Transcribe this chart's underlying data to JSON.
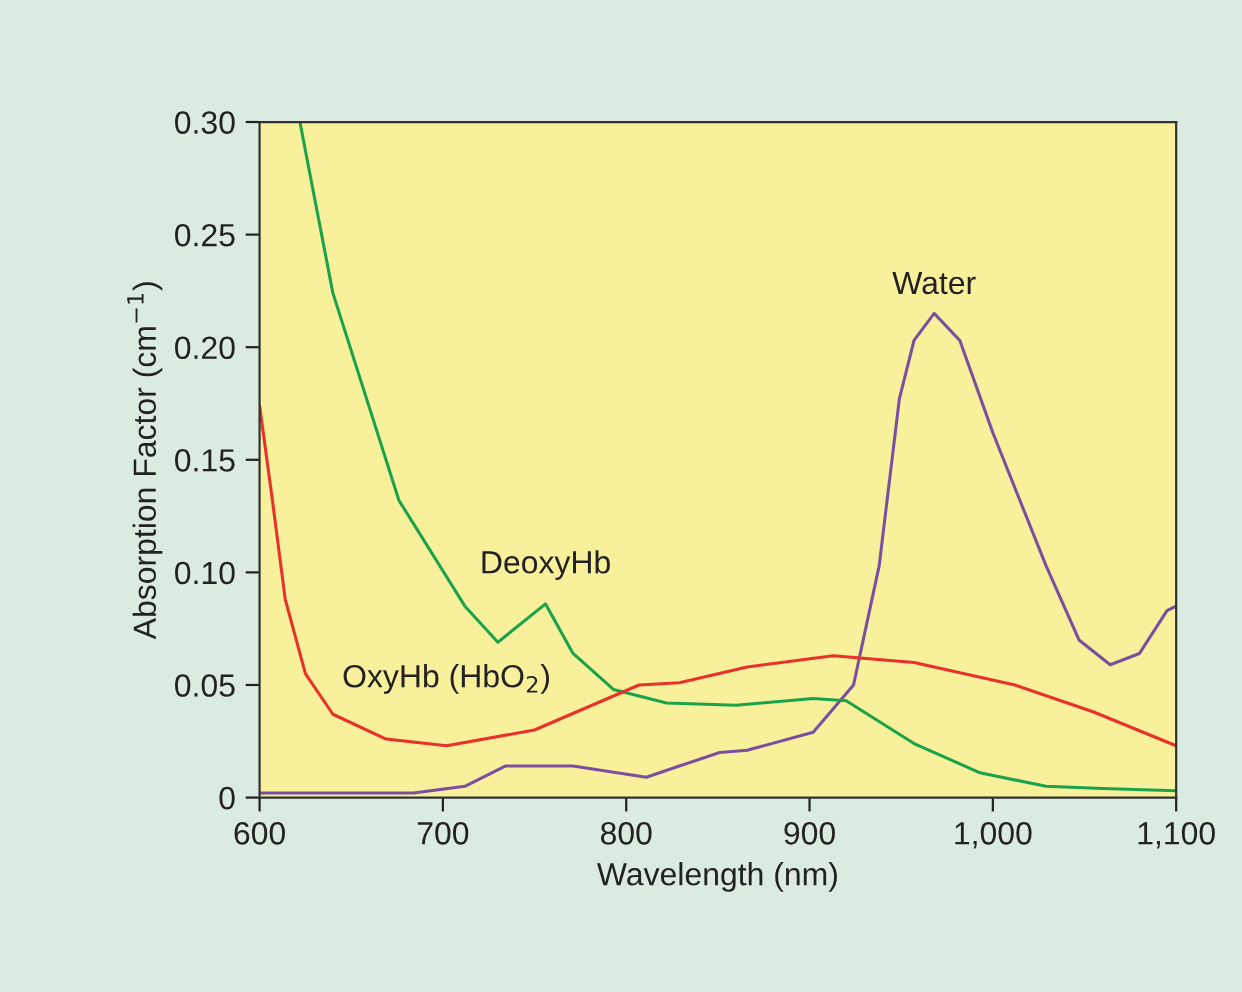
{
  "chart_data": {
    "type": "line",
    "xlabel": "Wavelength (nm)",
    "ylabel": "Absorption Factor (cm$^{−1}$)",
    "xlim": [
      600,
      1100
    ],
    "xticks": [
      600,
      700,
      800,
      900,
      {
        "value": 1000,
        "label": "1,000"
      },
      {
        "value": 1100,
        "label": "1,100"
      }
    ],
    "ylim": [
      0,
      0.3
    ],
    "yticks": [
      0,
      0.05,
      {
        "value": 0.1,
        "label": "0.10"
      },
      0.15,
      {
        "value": 0.2,
        "label": "0.20"
      },
      0.25,
      {
        "value": 0.3,
        "label": "0.30"
      }
    ],
    "grid": false,
    "legend": false,
    "marker": "none",
    "line_style": "solid",
    "series": [
      {
        "name": "Water",
        "color": "#7b4fa0",
        "x": [
          600,
          640,
          684,
          712,
          734,
          771,
          811,
          829,
          851,
          866,
          902,
          924,
          938,
          949,
          957,
          968,
          982,
          1000,
          1029,
          1047,
          1064,
          1080,
          1095,
          1100
        ],
        "values": [
          0.002,
          0.002,
          0.002,
          0.005,
          0.014,
          0.014,
          0.009,
          0.014,
          0.02,
          0.021,
          0.029,
          0.05,
          0.103,
          0.177,
          0.203,
          0.215,
          0.203,
          0.162,
          0.103,
          0.07,
          0.059,
          0.064,
          0.083,
          0.085
        ]
      },
      {
        "name": "DeoxyHb",
        "color": "#1aa34a",
        "x": [
          622,
          640,
          676,
          712,
          730,
          756,
          771,
          793,
          822,
          860,
          902,
          920,
          957,
          993,
          1029,
          1060,
          1100
        ],
        "values": [
          0.3,
          0.224,
          0.132,
          0.085,
          0.069,
          0.086,
          0.064,
          0.048,
          0.042,
          0.041,
          0.044,
          0.043,
          0.024,
          0.011,
          0.005,
          0.004,
          0.003
        ]
      },
      {
        "name": "OxyHb (HbO$_{2}$)",
        "color": "#e8312a",
        "x": [
          600,
          607,
          614,
          625,
          640,
          669,
          702,
          750,
          807,
          829,
          866,
          913,
          957,
          1012,
          1055,
          1100
        ],
        "values": [
          0.174,
          0.132,
          0.088,
          0.055,
          0.037,
          0.026,
          0.023,
          0.03,
          0.05,
          0.051,
          0.058,
          0.063,
          0.06,
          0.05,
          0.038,
          0.023
        ]
      }
    ]
  }
}
